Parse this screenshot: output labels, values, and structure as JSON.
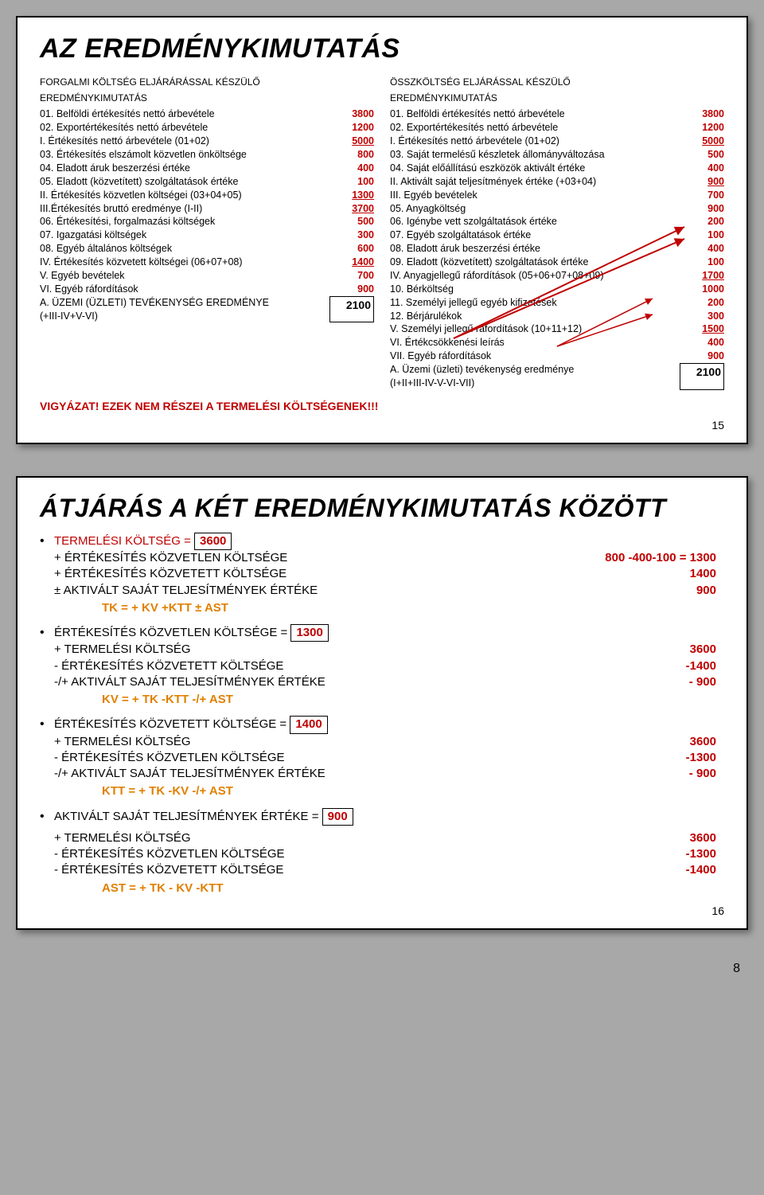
{
  "doc_page_number": "8",
  "slide1": {
    "title": "AZ EREDMÉNYKIMUTATÁS",
    "left_head1": "FORGALMI KÖLTSÉG ELJÁRÁRÁSSAL KÉSZÜLŐ",
    "left_head2": "EREDMÉNYKIMUTATÁS",
    "left_rows": [
      {
        "l": "01. Belföldi értékesítés nettó árbevétele",
        "v": "3800"
      },
      {
        "l": "02. Exportértékesítés nettó árbevétele",
        "v": "1200"
      },
      {
        "l": "I.   Értékesítés nettó árbevétele (01+02)",
        "v": "5000",
        "u": true
      },
      {
        "l": "03. Értékesítés elszámolt közvetlen önköltsége",
        "v": "800"
      },
      {
        "l": "04. Eladott áruk beszerzési értéke",
        "v": "400"
      },
      {
        "l": "05. Eladott (közvetített) szolgáltatások értéke",
        "v": "100"
      },
      {
        "l": "II. Értékesítés közvetlen költségei (03+04+05)",
        "v": "1300",
        "u": true
      },
      {
        "l": "III.Értékesítés bruttó eredménye (I-II)",
        "v": "3700",
        "u": true
      },
      {
        "l": "06. Értékesítési, forgalmazási költségek",
        "v": "500"
      },
      {
        "l": "07. Igazgatási költségek",
        "v": "300"
      },
      {
        "l": "08. Egyéb általános költségek",
        "v": "600"
      },
      {
        "l": "IV. Értékesítés közvetett költségei (06+07+08)",
        "v": "1400",
        "u": true
      },
      {
        "l": "V.   Egyéb bevételek",
        "v": "700"
      },
      {
        "l": "VI. Egyéb ráfordítások",
        "v": "900"
      }
    ],
    "left_final_label": "A. ÜZEMI (ÜZLETI) TEVÉKENYSÉG EREDMÉNYE\n    (+III-IV+V-VI)",
    "left_final_value": "2100",
    "right_head1": "ÖSSZKÖLTSÉG ELJÁRÁSSAL KÉSZÜLŐ",
    "right_head2": "EREDMÉNYKIMUTATÁS",
    "right_rows": [
      {
        "l": "01. Belföldi értékesítés nettó árbevétele",
        "v": "3800"
      },
      {
        "l": "02. Exportértékesítés nettó árbevétele",
        "v": "1200"
      },
      {
        "l": "I. Értékesítés nettó árbevétele (01+02)",
        "v": "5000",
        "u": true
      },
      {
        "l": "03. Saját termelésű készletek állományváltozása",
        "v": "500"
      },
      {
        "l": "04. Saját előállítású eszközök aktivált értéke",
        "v": "400"
      },
      {
        "l": "II. Aktivált saját teljesítmények értéke (+03+04)",
        "v": "900",
        "u": true
      },
      {
        "l": "III. Egyéb bevételek",
        "v": "700"
      },
      {
        "l": "05. Anyagköltség",
        "v": "900"
      },
      {
        "l": "06. Igénybe vett szolgáltatások értéke",
        "v": "200"
      },
      {
        "l": "07. Egyéb szolgáltatások értéke",
        "v": "100"
      },
      {
        "l": "08. Eladott áruk beszerzési értéke",
        "v": "400"
      },
      {
        "l": "09. Eladott (közvetített) szolgáltatások értéke",
        "v": "100"
      },
      {
        "l": "IV. Anyagjellegű ráfordítások (05+06+07+08+09)",
        "v": "1700",
        "u": true
      },
      {
        "l": "10. Bérköltség",
        "v": "1000"
      },
      {
        "l": "11. Személyi jellegű egyéb kifizetések",
        "v": "200"
      },
      {
        "l": "12. Bérjárulékok",
        "v": "300"
      },
      {
        "l": "V. Személyi jellegű ráfordítások (10+11+12)",
        "v": "1500",
        "u": true
      },
      {
        "l": "VI. Értékcsökkenési leírás",
        "v": "400"
      },
      {
        "l": "VII. Egyéb ráfordítások",
        "v": "900"
      }
    ],
    "right_final_label": "A. Üzemi (üzleti) tevékenység eredménye\n    (I+II+III-IV-V-VI-VII)",
    "right_final_value": "2100",
    "warning": "VIGYÁZAT! EZEK NEM RÉSZEI A TERMELÉSI KÖLTSÉGENEK!!!",
    "pageno": "15"
  },
  "slide2": {
    "title": "ÁTJÁRÁS A KÉT EREDMÉNYKIMUTATÁS KÖZÖTT",
    "blocks": [
      {
        "head_pre": "TERMELÉSI KÖLTSÉG =",
        "head_box": "3600",
        "lines": [
          {
            "t": "+ ÉRTÉKESÍTÉS KÖZVETLEN KÖLTSÉGE",
            "r": "800 -400-100 = 1300"
          },
          {
            "t": "+ ÉRTÉKESÍTÉS KÖZVETETT KÖLTSÉGE",
            "r": "1400"
          },
          {
            "t": "± AKTIVÁLT SAJÁT TELJESÍTMÉNYEK ÉRTÉKE",
            "r": "900"
          }
        ],
        "formula": "TK = + KV +KTT ± AST"
      },
      {
        "head_pre": "ÉRTÉKESÍTÉS KÖZVETLEN KÖLTSÉGE =",
        "head_box": "1300",
        "lines": [
          {
            "t": "+ TERMELÉSI KÖLTSÉG",
            "r": "3600"
          },
          {
            "t": "- ÉRTÉKESÍTÉS KÖZVETETT KÖLTSÉGE",
            "r": "-1400"
          },
          {
            "t": "-/+ AKTIVÁLT SAJÁT TELJESÍTMÉNYEK ÉRTÉKE",
            "r": "- 900"
          }
        ],
        "formula": "KV = + TK -KTT -/+ AST"
      },
      {
        "head_pre": "ÉRTÉKESÍTÉS KÖZVETETT KÖLTSÉGE =",
        "head_box": "1400",
        "lines": [
          {
            "t": "+ TERMELÉSI KÖLTSÉG",
            "r": "3600"
          },
          {
            "t": "- ÉRTÉKESÍTÉS KÖZVETLEN KÖLTSÉGE",
            "r": "-1300"
          },
          {
            "t": "-/+ AKTIVÁLT SAJÁT TELJESÍTMÉNYEK ÉRTÉKE",
            "r": "- 900"
          }
        ],
        "formula": "KTT = + TK -KV -/+ AST"
      },
      {
        "head_pre": "AKTIVÁLT SAJÁT TELJESÍTMÉNYEK ÉRTÉKE =",
        "head_box": "900",
        "lines": [
          {
            "t": "",
            "r": ""
          },
          {
            "t": "+ TERMELÉSI KÖLTSÉG",
            "r": "3600"
          },
          {
            "t": "- ÉRTÉKESÍTÉS KÖZVETLEN KÖLTSÉGE",
            "r": "-1300"
          },
          {
            "t": "- ÉRTÉKESÍTÉS KÖZVETETT KÖLTSÉGE",
            "r": "-1400"
          }
        ],
        "formula": "AST = + TK - KV -KTT"
      }
    ],
    "pageno": "16"
  },
  "colors": {
    "red": "#c00000",
    "orange": "#e08000",
    "bg": "#a8a8a8",
    "slide_bg": "#ffffff"
  }
}
